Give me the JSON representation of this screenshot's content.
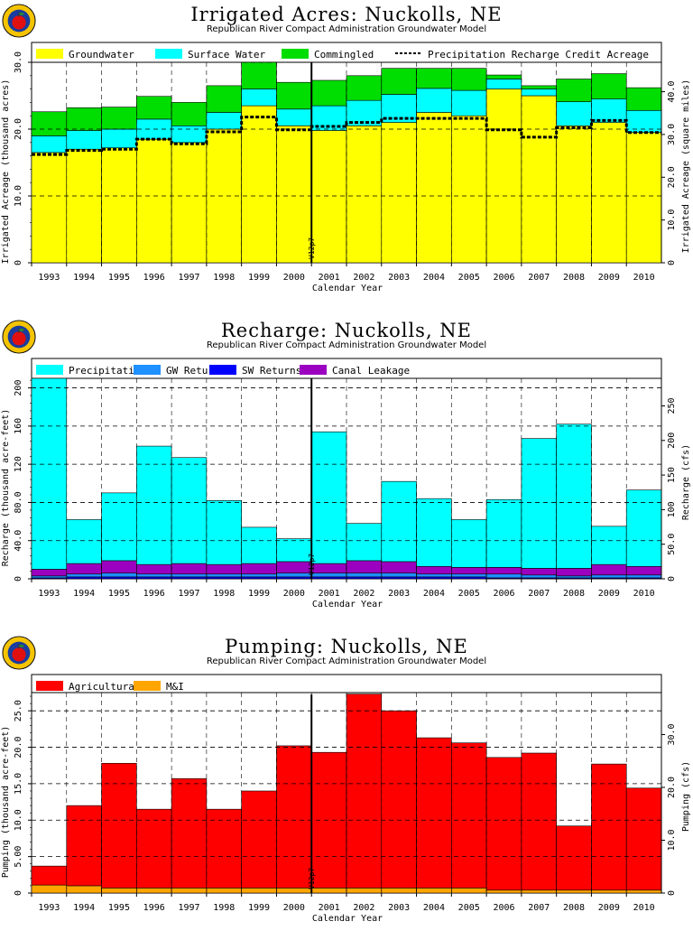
{
  "colors": {
    "groundwater": "#ffff00",
    "surface_water": "#00ffff",
    "commingled": "#00dd00",
    "precipitation": "#00ffff",
    "gw_returns": "#1e90ff",
    "sw_returns": "#0000ff",
    "canal_leakage": "#9b00c0",
    "agricultural": "#ff0000",
    "mi": "#ffa500"
  },
  "logo": {
    "icon": "apple-logo-icon"
  },
  "chart_data": [
    {
      "type": "bar",
      "title": "Irrigated Acres: Nuckolls, NE",
      "subtitle": "Republican River Compact Administration Groundwater Model",
      "xlabel": "Calendar Year",
      "ylabel": "Irrigated Acreage (thousand acres)",
      "y2label": "Irrigated Acreage (square miles)",
      "ylim": [
        0,
        30
      ],
      "yticks": [
        "0",
        "10.0",
        "20.0",
        "30.0"
      ],
      "y2ticks": [
        "0",
        "10.0",
        "20.0",
        "30.0",
        "40.0"
      ],
      "marker_label": "V12p7",
      "categories": [
        "1993",
        "1994",
        "1995",
        "1996",
        "1997",
        "1998",
        "1999",
        "2000",
        "2001",
        "2002",
        "2003",
        "2004",
        "2005",
        "2006",
        "2007",
        "2008",
        "2009",
        "2010"
      ],
      "legend": [
        "Groundwater",
        "Surface Water",
        "Commingled",
        "Precipitation Recharge Credit Acreage"
      ],
      "series": [
        {
          "name": "Groundwater",
          "values": [
            16.5,
            17.0,
            17.2,
            18.5,
            18.0,
            20.0,
            23.5,
            20.5,
            19.8,
            20.5,
            21.0,
            22.5,
            22.0,
            26.0,
            25.0,
            20.5,
            21.0,
            19.5
          ]
        },
        {
          "name": "Surface Water",
          "values": [
            2.5,
            2.8,
            2.8,
            3.0,
            2.5,
            2.5,
            2.5,
            2.5,
            3.7,
            3.8,
            4.2,
            3.6,
            3.8,
            1.5,
            1.0,
            3.6,
            3.5,
            3.3
          ]
        },
        {
          "name": "Commingled",
          "values": [
            3.6,
            3.4,
            3.3,
            3.4,
            3.5,
            4.0,
            4.0,
            4.0,
            3.8,
            3.7,
            3.9,
            3.0,
            3.3,
            0.6,
            0.5,
            3.4,
            3.8,
            3.4
          ]
        }
      ],
      "line": {
        "name": "Precipitation Recharge Credit Acreage",
        "values": [
          16.2,
          16.8,
          17.0,
          18.5,
          17.8,
          19.6,
          21.8,
          19.9,
          20.4,
          21.0,
          21.6,
          21.6,
          21.6,
          19.9,
          18.8,
          20.2,
          21.3,
          19.5
        ]
      }
    },
    {
      "type": "bar",
      "title": "Recharge: Nuckolls, NE",
      "subtitle": "Republican River Compact Administration Groundwater Model",
      "xlabel": "Calendar Year",
      "ylabel": "Recharge (thousand acre-feet)",
      "y2label": "Recharge (cfs)",
      "ylim": [
        0,
        210
      ],
      "yticks": [
        "0",
        "40.0",
        "80.0",
        "120",
        "160",
        "200"
      ],
      "y2ticks": [
        "0",
        "50.0",
        "100",
        "150",
        "200",
        "250"
      ],
      "marker_label": "V12p7",
      "categories": [
        "1993",
        "1994",
        "1995",
        "1996",
        "1997",
        "1998",
        "1999",
        "2000",
        "2001",
        "2002",
        "2003",
        "2004",
        "2005",
        "2006",
        "2007",
        "2008",
        "2009",
        "2010"
      ],
      "legend": [
        "Precipitation",
        "GW Returns",
        "SW Returns",
        "Canal Leakage"
      ],
      "series": [
        {
          "name": "SW Returns",
          "values": [
            1,
            2,
            2,
            2,
            2,
            2,
            2,
            2,
            2,
            2,
            2,
            2,
            2,
            1,
            1,
            1,
            1,
            1
          ]
        },
        {
          "name": "GW Returns",
          "values": [
            2,
            3,
            4,
            3,
            3,
            3,
            3,
            4,
            4,
            4,
            4,
            3,
            3,
            4,
            3,
            2,
            3,
            3
          ]
        },
        {
          "name": "Canal Leakage",
          "values": [
            7,
            11,
            13,
            10,
            11,
            10,
            11,
            12,
            10,
            13,
            12,
            8,
            7,
            7,
            7,
            8,
            11,
            9
          ]
        },
        {
          "name": "Precipitation",
          "values": [
            200,
            46,
            71,
            124,
            111,
            67,
            38,
            24,
            138,
            39,
            84,
            71,
            50,
            71,
            136,
            151,
            40,
            80
          ]
        }
      ]
    },
    {
      "type": "bar",
      "title": "Pumping: Nuckolls, NE",
      "subtitle": "Republican River Compact Administration Groundwater Model",
      "xlabel": "Calendar Year",
      "ylabel": "Pumping (thousand acre-feet)",
      "y2label": "Pumping (cfs)",
      "ylim": [
        0,
        27.5
      ],
      "yticks": [
        "0",
        "5.00",
        "10.0",
        "15.0",
        "20.0",
        "25.0"
      ],
      "y2ticks": [
        "0",
        "10.0",
        "20.0",
        "30.0"
      ],
      "marker_label": "V12p7",
      "categories": [
        "1993",
        "1994",
        "1995",
        "1996",
        "1997",
        "1998",
        "1999",
        "2000",
        "2001",
        "2002",
        "2003",
        "2004",
        "2005",
        "2006",
        "2007",
        "2008",
        "2009",
        "2010"
      ],
      "legend": [
        "Agricultural",
        "M&I"
      ],
      "series": [
        {
          "name": "M&I",
          "values": [
            1.1,
            1.0,
            0.7,
            0.7,
            0.7,
            0.7,
            0.7,
            0.7,
            0.7,
            0.7,
            0.7,
            0.7,
            0.7,
            0.4,
            0.4,
            0.4,
            0.4,
            0.4
          ]
        },
        {
          "name": "Agricultural",
          "values": [
            2.6,
            11.0,
            17.1,
            10.8,
            15.0,
            10.8,
            13.3,
            19.5,
            18.6,
            26.6,
            24.3,
            20.6,
            19.9,
            18.2,
            18.8,
            8.8,
            17.3,
            14.0
          ]
        }
      ]
    }
  ]
}
